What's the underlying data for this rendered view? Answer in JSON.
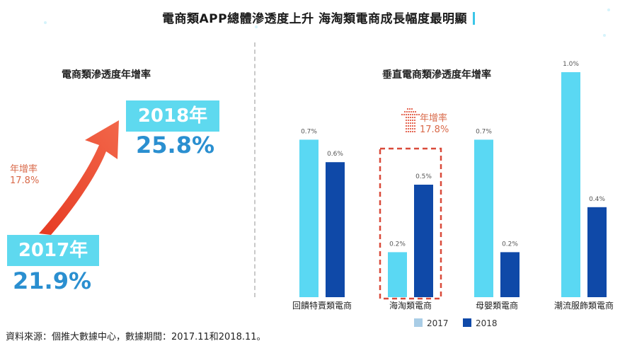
{
  "title": "電商類APP總體滲透度上升  海淘類電商成長幅度最明顯",
  "left_panel": {
    "title": "電商類滲透度年增率",
    "from": {
      "year": "2017年",
      "value": "21.9%"
    },
    "to": {
      "year": "2018年",
      "value": "25.8%"
    },
    "growth_label": "年增率",
    "growth_value": "17.8%"
  },
  "right_panel": {
    "title": "垂直電商類滲透度年增率",
    "growth_label": "年增率",
    "growth_value": "17.8%"
  },
  "legend": {
    "y2017": "2017",
    "y2018": "2018"
  },
  "source": "資料來源：個推大數據中心，數據期間：2017.11和2018.11。",
  "colors": {
    "c2017": "#5ad8f3",
    "c2018": "#0f49a8",
    "arrow": "#e8442c",
    "highlight": "#d94a3a"
  },
  "chart_data": {
    "type": "bar",
    "title": "垂直電商類滲透度年增率",
    "categories": [
      "回饋特賣類電商",
      "海淘類電商",
      "母嬰類電商",
      "潮流服飾類電商"
    ],
    "series": [
      {
        "name": "2017",
        "values": [
          0.7,
          0.2,
          0.7,
          1.0
        ],
        "labels": [
          "0.7%",
          "0.2%",
          "0.7%",
          "1.0%"
        ]
      },
      {
        "name": "2018",
        "values": [
          0.6,
          0.5,
          0.2,
          0.4
        ],
        "labels": [
          "0.6%",
          "0.5%",
          "0.2%",
          "0.4%"
        ]
      }
    ],
    "ylim": [
      0,
      1.0
    ],
    "highlight_category": "海淘類電商",
    "legend_placement": "bottom"
  }
}
